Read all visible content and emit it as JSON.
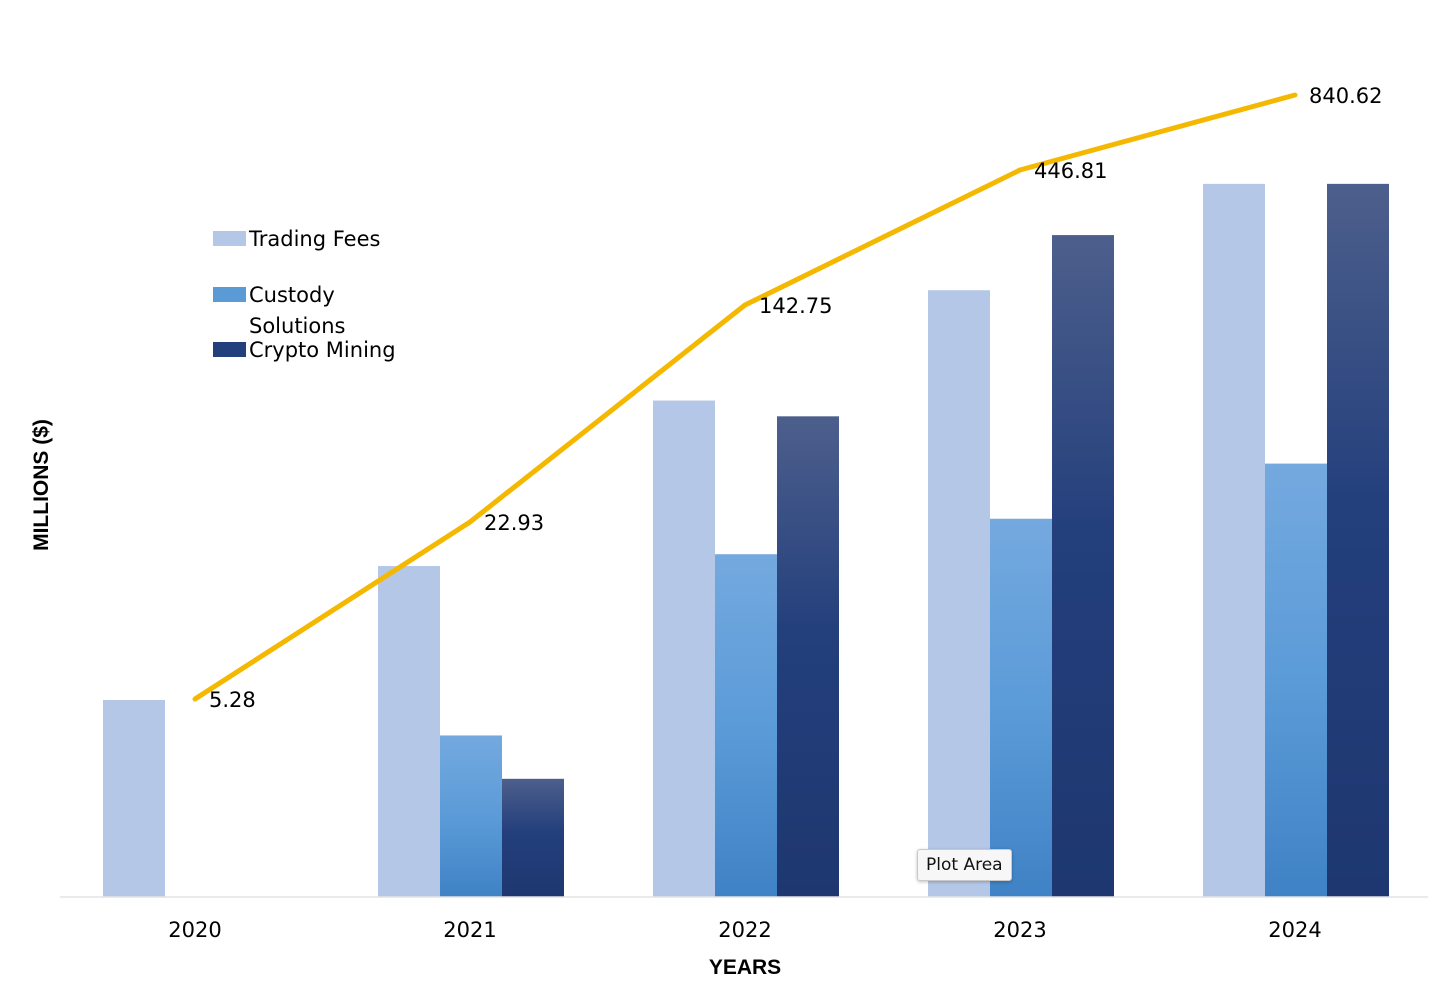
{
  "chart_data": {
    "type": "bar",
    "title": "",
    "xlabel": "YEARS",
    "ylabel": "MILLIONS ($)",
    "categories": [
      "2020",
      "2021",
      "2022",
      "2023",
      "2024"
    ],
    "series": [
      {
        "name": "Trading Fees",
        "values": [
          5.0,
          8.4,
          12.6,
          15.4,
          18.1
        ],
        "color": "#b4c7e7"
      },
      {
        "name": "Custody Solutions",
        "values": [
          0,
          4.1,
          8.7,
          9.6,
          11.0
        ],
        "color": "#5b9bd5"
      },
      {
        "name": "Crypto Mining",
        "values": [
          0,
          3.0,
          12.2,
          16.8,
          18.1
        ],
        "color": "#2e4680"
      }
    ],
    "line": {
      "values": [
        5.28,
        22.93,
        142.75,
        446.81,
        840.62
      ],
      "labels": [
        "5.28",
        "22.93",
        "142.75",
        "446.81",
        "840.62"
      ],
      "color": "#f5b800"
    },
    "legend_position": "upper-left",
    "grid": false
  },
  "legend": {
    "line1": [
      "Trading Fees"
    ],
    "line2": [
      "Custody",
      "Solutions"
    ],
    "line3": [
      "Crypto Mining"
    ]
  },
  "tooltip": {
    "label": "Plot Area"
  }
}
